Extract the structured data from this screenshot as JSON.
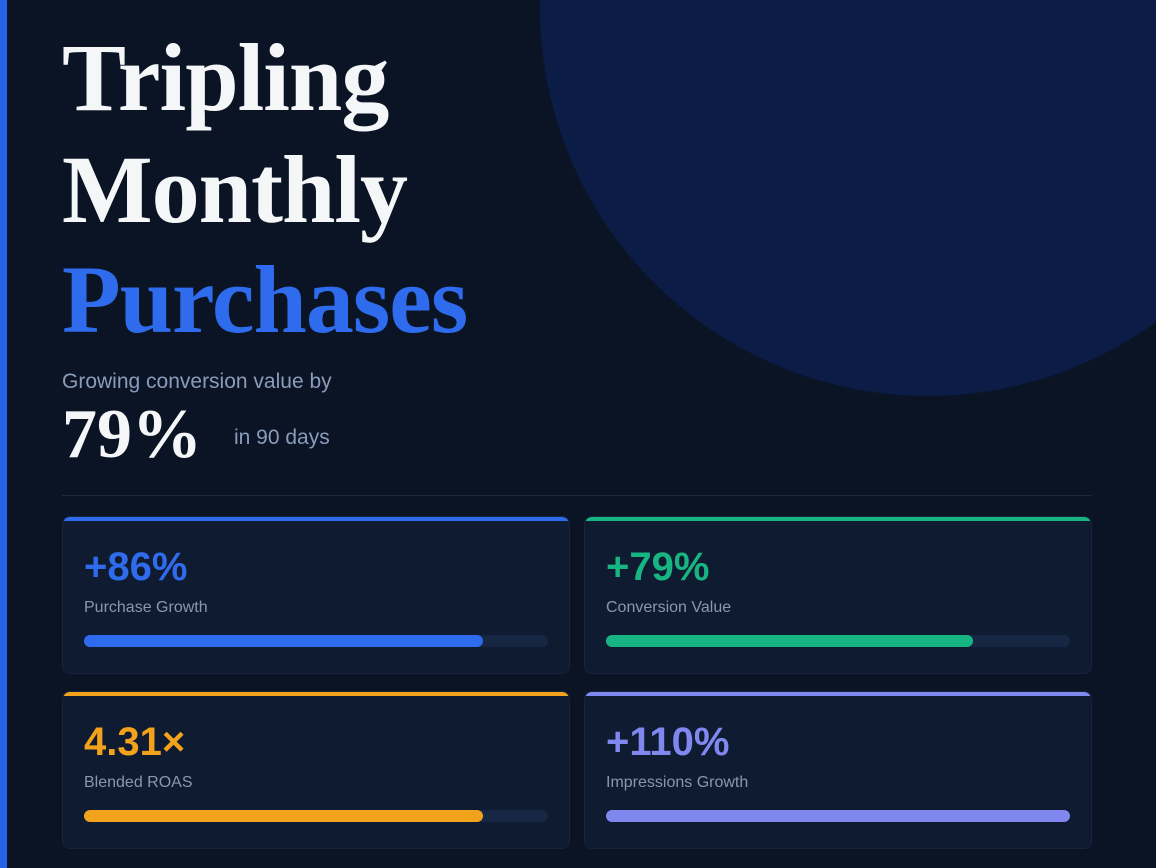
{
  "header": {
    "title_line1": "Tripling",
    "title_line2": "Monthly",
    "title_line3": "Purchases",
    "subtitle": "Growing conversion value by",
    "headline_value": "79%",
    "headline_note": "in 90 days"
  },
  "cards": [
    {
      "value": "+86%",
      "label": "Purchase Growth",
      "color": "#2f6bed",
      "bar_fill": 86
    },
    {
      "value": "+79%",
      "label": "Conversion Value",
      "color": "#17b582",
      "bar_fill": 79
    },
    {
      "value": "4.31×",
      "label": "Blended ROAS",
      "color": "#f3a21c",
      "bar_fill": 86
    },
    {
      "value": "+110%",
      "label": "Impressions Growth",
      "color": "#8088f0",
      "bar_fill": 100
    }
  ]
}
